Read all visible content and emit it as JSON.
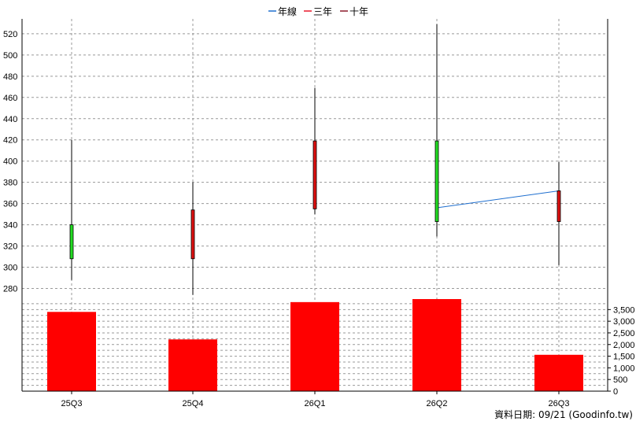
{
  "legend": [
    {
      "label": "年線",
      "color": "#1f6fcf"
    },
    {
      "label": "三年",
      "color": "#e8182b"
    },
    {
      "label": "十年",
      "color": "#8b1a2a"
    }
  ],
  "footer": "資料日期: 09/21  (Goodinfo.tw)",
  "colors": {
    "up_candle": "#22dd22",
    "down_candle": "#dd1111",
    "volume_bar": "#ff0000",
    "grid": "#999999",
    "year_line": "#1f6fcf"
  },
  "chart_data": [
    {
      "type": "candlestick",
      "categories": [
        "25Q3",
        "25Q4",
        "26Q1",
        "26Q2",
        "26Q3"
      ],
      "candles": [
        {
          "open": 308,
          "close": 340,
          "high": 420,
          "low": 288,
          "color": "green"
        },
        {
          "open": 354,
          "close": 308,
          "high": 380,
          "low": 274,
          "color": "red"
        },
        {
          "open": 419,
          "close": 355,
          "high": 469,
          "low": 350,
          "color": "red"
        },
        {
          "open": 343,
          "close": 419,
          "high": 529,
          "low": 329,
          "color": "green"
        },
        {
          "open": 372,
          "close": 343,
          "high": 399,
          "low": 302,
          "color": "red"
        }
      ],
      "series": [
        {
          "name": "年線",
          "points": [
            {
              "x": "26Q2",
              "y": 356
            },
            {
              "x": "26Q3",
              "y": 372
            }
          ]
        }
      ],
      "yticks": [
        280,
        300,
        320,
        340,
        360,
        380,
        400,
        420,
        440,
        460,
        480,
        500,
        520
      ],
      "ylim": [
        270,
        534
      ],
      "grid": true,
      "legend_position": "top"
    },
    {
      "type": "bar",
      "categories": [
        "25Q3",
        "25Q4",
        "26Q1",
        "26Q2",
        "26Q3"
      ],
      "values": [
        3400,
        2220,
        3820,
        3950,
        1560
      ],
      "yticks": [
        0,
        500,
        1000,
        1500,
        2000,
        2500,
        3000,
        3500
      ],
      "ytick_labels": [
        "0",
        "500",
        "1,000",
        "1,500",
        "2,000",
        "2,500",
        "3,000",
        "3,500"
      ],
      "ylim": [
        0,
        3950
      ],
      "grid": true
    }
  ]
}
